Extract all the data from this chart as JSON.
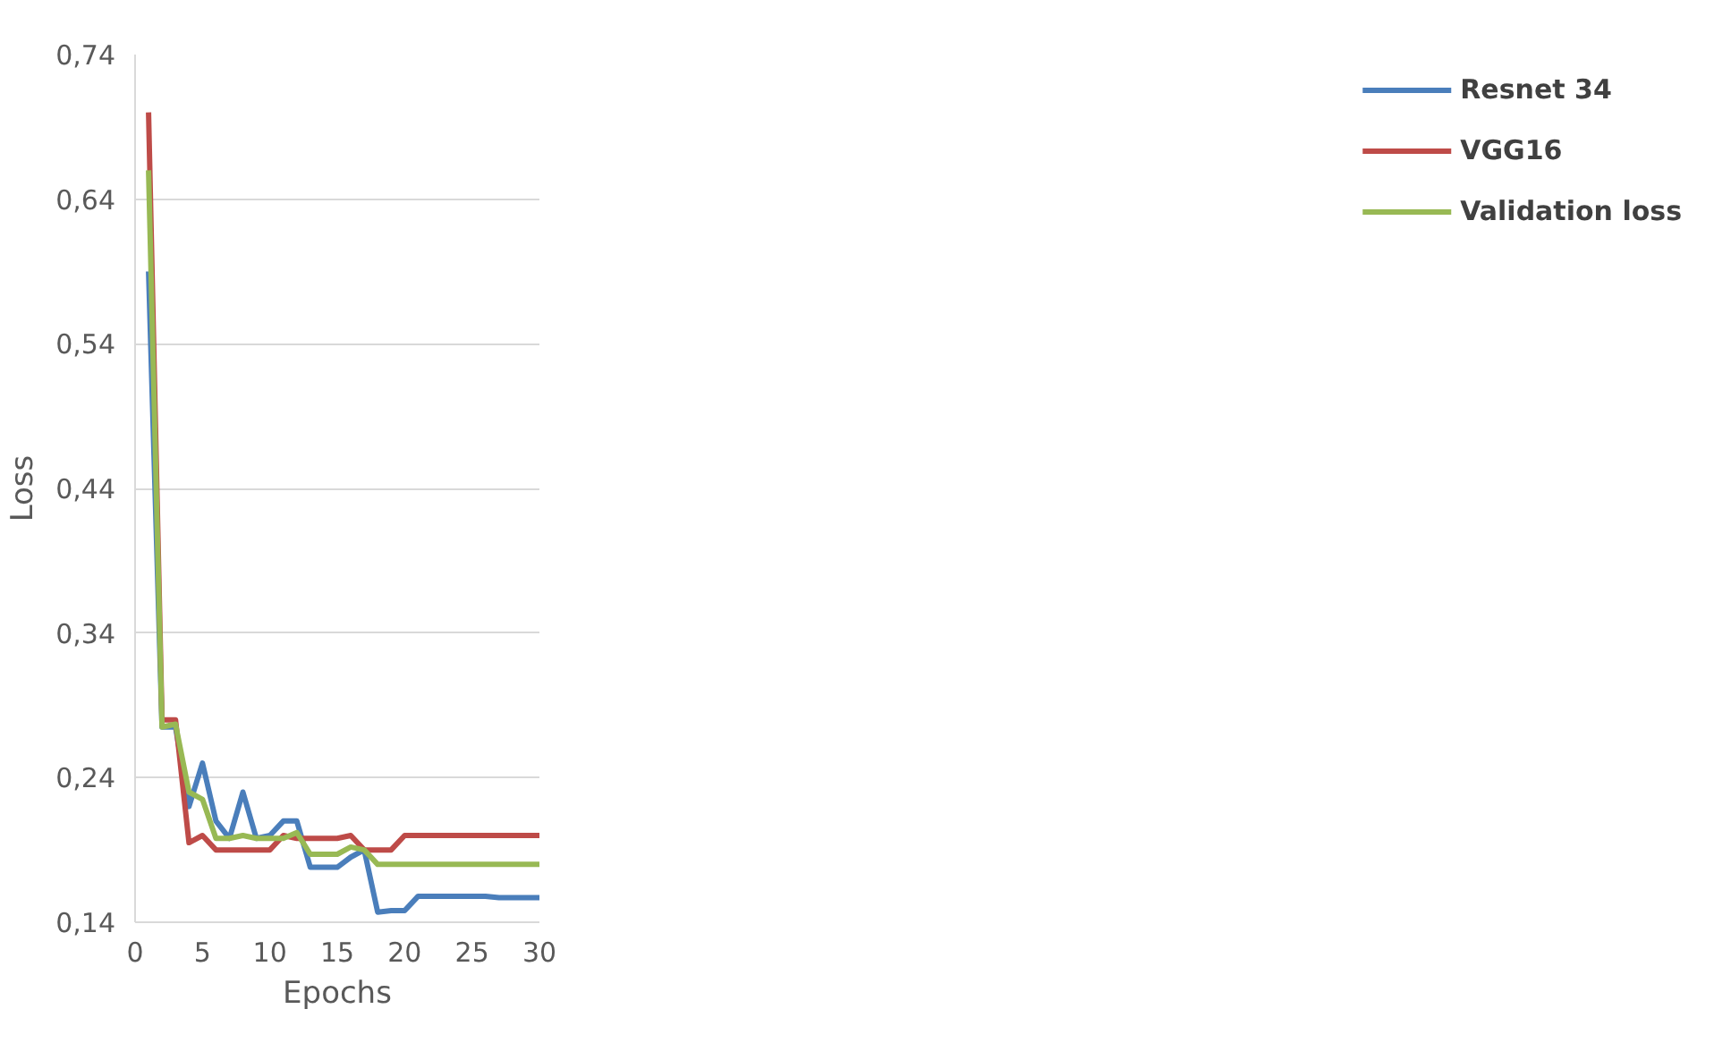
{
  "chart_data": {
    "type": "line",
    "xlabel": "Epochs",
    "ylabel": "Loss",
    "x": [
      1,
      2,
      3,
      4,
      5,
      6,
      7,
      8,
      9,
      10,
      11,
      12,
      13,
      14,
      15,
      16,
      17,
      18,
      19,
      20,
      21,
      22,
      23,
      24,
      25,
      26,
      27,
      28,
      29,
      30
    ],
    "series": [
      {
        "name": "Resnet 34",
        "color": "#4a7ebb",
        "values": [
          0.59,
          0.275,
          0.275,
          0.22,
          0.25,
          0.21,
          0.198,
          0.23,
          0.198,
          0.2,
          0.21,
          0.21,
          0.178,
          0.178,
          0.178,
          0.185,
          0.19,
          0.147,
          0.148,
          0.148,
          0.158,
          0.158,
          0.158,
          0.158,
          0.158,
          0.158,
          0.157,
          0.157,
          0.157,
          0.157
        ]
      },
      {
        "name": "VGG16",
        "color": "#be4b48",
        "values": [
          0.7,
          0.28,
          0.28,
          0.195,
          0.2,
          0.19,
          0.19,
          0.19,
          0.19,
          0.19,
          0.2,
          0.198,
          0.198,
          0.198,
          0.198,
          0.2,
          0.19,
          0.19,
          0.19,
          0.2,
          0.2,
          0.2,
          0.2,
          0.2,
          0.2,
          0.2,
          0.2,
          0.2,
          0.2,
          0.2
        ]
      },
      {
        "name": "Validation loss",
        "color": "#98b954",
        "values": [
          0.66,
          0.275,
          0.277,
          0.23,
          0.225,
          0.198,
          0.198,
          0.2,
          0.198,
          0.198,
          0.198,
          0.202,
          0.187,
          0.187,
          0.187,
          0.192,
          0.19,
          0.18,
          0.18,
          0.18,
          0.18,
          0.18,
          0.18,
          0.18,
          0.18,
          0.18,
          0.18,
          0.18,
          0.18,
          0.18
        ]
      }
    ],
    "xlim": [
      0,
      30
    ],
    "xticks": [
      0,
      5,
      10,
      15,
      20,
      25,
      30
    ],
    "ylim": [
      0.14,
      0.74
    ],
    "yticks": [
      {
        "value": 0.14,
        "label": "0,14"
      },
      {
        "value": 0.24,
        "label": "0,24"
      },
      {
        "value": 0.34,
        "label": "0,34"
      },
      {
        "value": 0.44,
        "label": "0,44"
      },
      {
        "value": 0.54,
        "label": "0,54"
      },
      {
        "value": 0.64,
        "label": "0,64"
      },
      {
        "value": 0.74,
        "label": "0,74"
      }
    ],
    "grid": "y",
    "legend": "right",
    "marker": "none",
    "line_style": "solid"
  }
}
